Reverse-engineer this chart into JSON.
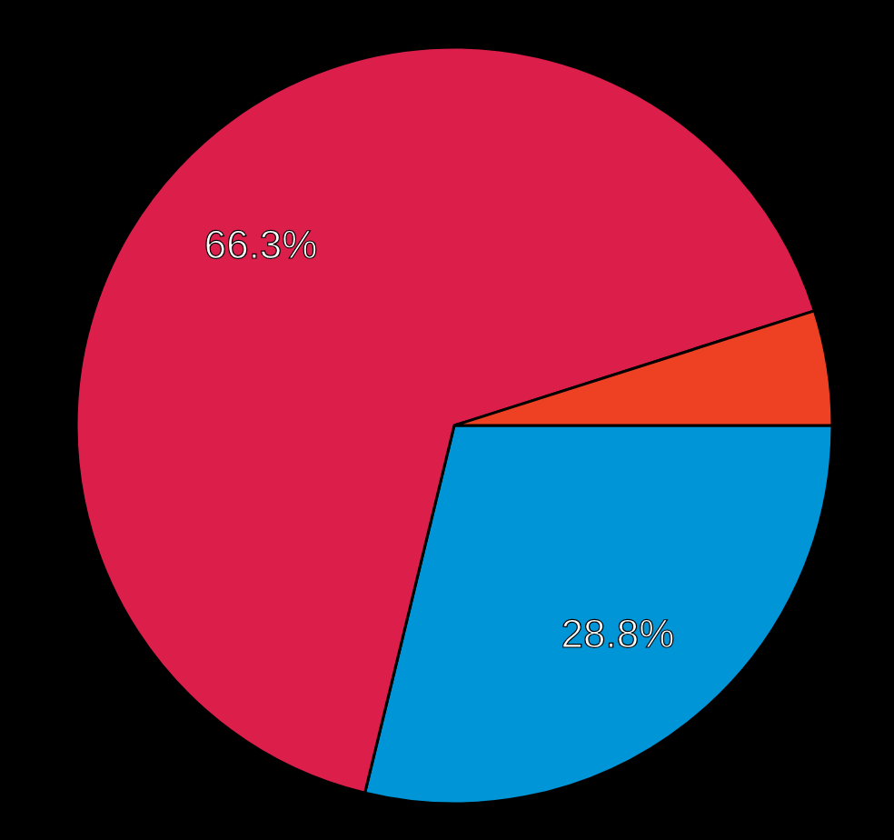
{
  "chart_data": {
    "type": "pie",
    "categories": [
      null,
      null,
      null
    ],
    "values": [
      28.8,
      66.3,
      4.9
    ],
    "colors": [
      "#0095d6",
      "#dc1e4a",
      "#ee4023"
    ],
    "value_labels": [
      "28.8%",
      "66.3%",
      null
    ]
  }
}
